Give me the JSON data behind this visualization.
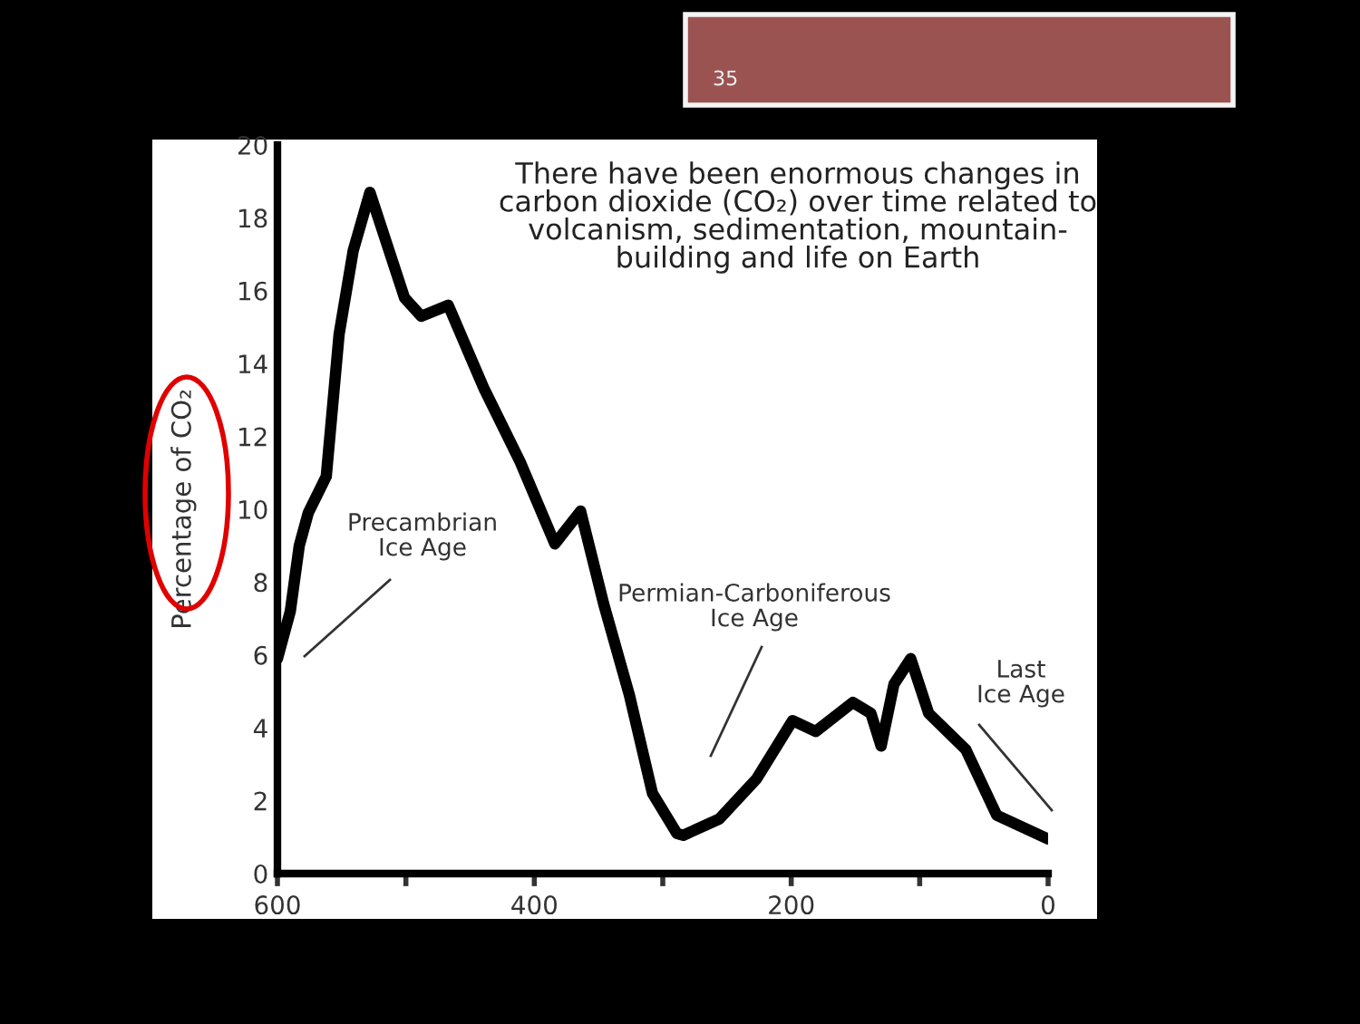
{
  "chart_data": {
    "type": "line",
    "title": "There have been enormous changes in\ncarbon dioxide (CO₂) over time related to\nvolcanism, sedimentation, mountain-\nbuilding and life on Earth",
    "ylabel": "Percentage of CO₂",
    "x": [
      600,
      590,
      583,
      576,
      562,
      552,
      541,
      528,
      501,
      488,
      467,
      439,
      411,
      384,
      364,
      346,
      326,
      308,
      289,
      284,
      256,
      227,
      199,
      181,
      152,
      138,
      130,
      120,
      107,
      93,
      64,
      40,
      0
    ],
    "series": [
      {
        "color": "#000000",
        "values": [
          5.9,
          7.2,
          9.0,
          9.9,
          10.9,
          14.8,
          17.1,
          18.7,
          15.8,
          15.3,
          15.6,
          13.3,
          11.3,
          9.05,
          9.95,
          7.4,
          4.9,
          2.2,
          1.1,
          1.05,
          1.5,
          2.6,
          4.2,
          3.9,
          4.7,
          4.4,
          3.5,
          5.2,
          5.9,
          4.4,
          3.4,
          1.6,
          0.95
        ]
      }
    ],
    "xlim": [
      600,
      0
    ],
    "ylim": [
      0,
      20
    ],
    "xticks": [
      600,
      {
        "value": 500,
        "label": null
      },
      400,
      {
        "value": 300,
        "label": null
      },
      200,
      {
        "value": 100,
        "label": null
      },
      0
    ],
    "yticks": [
      0,
      2,
      4,
      6,
      8,
      10,
      12,
      14,
      16,
      18,
      20
    ],
    "annotations": [
      "Precambrian\nIce Age",
      "Permian-Carboniferous\nIce Age",
      "Last\nIce Age",
      "35"
    ],
    "grid": false,
    "legend": false,
    "marker": "none",
    "line_style": "solid"
  }
}
